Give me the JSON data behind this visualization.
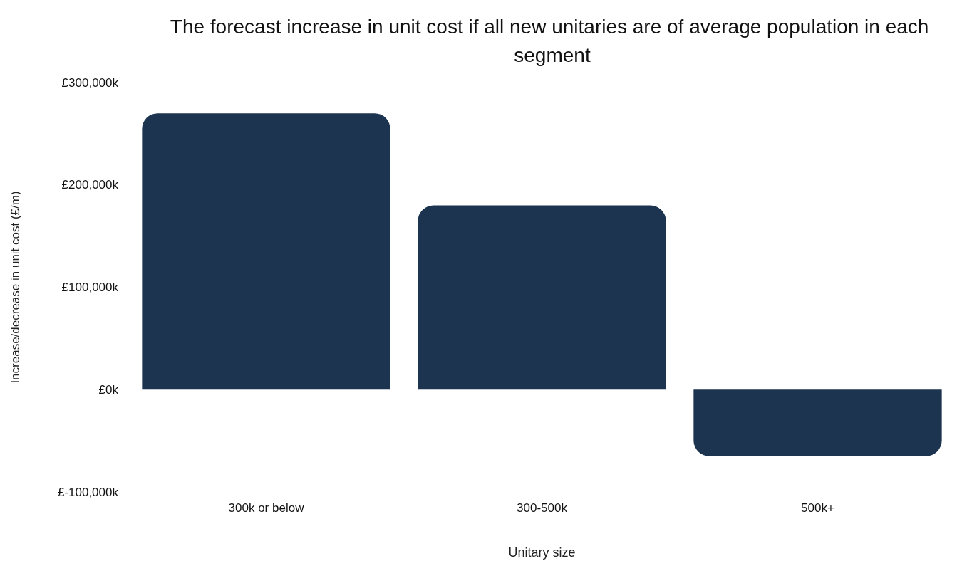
{
  "chart_data": {
    "type": "bar",
    "title": "The forecast increase in unit cost if all new unitaries are of average population in each segment",
    "xlabel": "Unitary size",
    "ylabel": "Increase/decrease in unit cost (£/m)",
    "categories": [
      "300k or below",
      "300-500k",
      "500k+"
    ],
    "values": [
      270000,
      180000,
      -65000
    ],
    "color": "#1c344f",
    "ylim": [
      -100000,
      300000
    ],
    "yticks": [
      {
        "value": -100000,
        "label": "£-100,000k"
      },
      {
        "value": 0,
        "label": "£0k"
      },
      {
        "value": 100000,
        "label": "£100,000k"
      },
      {
        "value": 200000,
        "label": "£200,000k"
      },
      {
        "value": 300000,
        "label": "£300,000k"
      }
    ],
    "grid": false
  }
}
